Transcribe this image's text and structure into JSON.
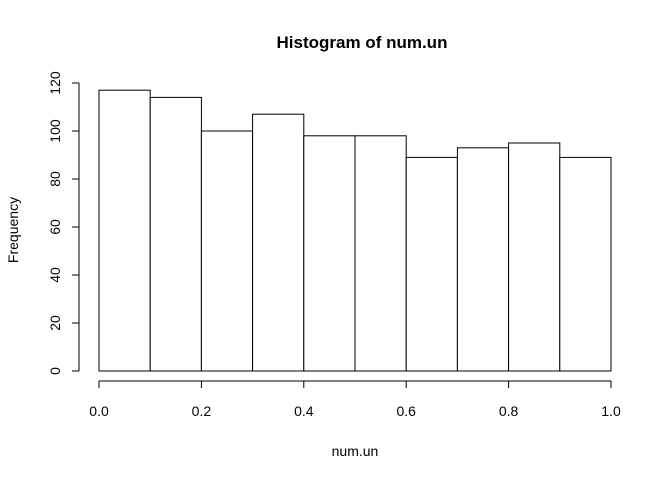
{
  "chart_data": {
    "type": "bar",
    "title": "Histogram of num.un",
    "xlabel": "num.un",
    "ylabel": "Frequency",
    "bins": [
      {
        "start": 0.0,
        "end": 0.1,
        "count": 117
      },
      {
        "start": 0.1,
        "end": 0.2,
        "count": 114
      },
      {
        "start": 0.2,
        "end": 0.3,
        "count": 100
      },
      {
        "start": 0.3,
        "end": 0.4,
        "count": 107
      },
      {
        "start": 0.4,
        "end": 0.5,
        "count": 98
      },
      {
        "start": 0.5,
        "end": 0.6,
        "count": 98
      },
      {
        "start": 0.6,
        "end": 0.7,
        "count": 89
      },
      {
        "start": 0.7,
        "end": 0.8,
        "count": 93
      },
      {
        "start": 0.8,
        "end": 0.9,
        "count": 95
      },
      {
        "start": 0.9,
        "end": 1.0,
        "count": 89
      }
    ],
    "xlim": [
      0,
      1
    ],
    "ylim": [
      0,
      120
    ],
    "xticks": [
      {
        "value": 0.0,
        "label": "0.0"
      },
      {
        "value": 0.2,
        "label": "0.2"
      },
      {
        "value": 0.4,
        "label": "0.4"
      },
      {
        "value": 0.6,
        "label": "0.6"
      },
      {
        "value": 0.8,
        "label": "0.8"
      },
      {
        "value": 1.0,
        "label": "1.0"
      }
    ],
    "yticks": [
      {
        "value": 0,
        "label": "0"
      },
      {
        "value": 20,
        "label": "20"
      },
      {
        "value": 40,
        "label": "40"
      },
      {
        "value": 60,
        "label": "60"
      },
      {
        "value": 80,
        "label": "80"
      },
      {
        "value": 100,
        "label": "100"
      },
      {
        "value": 120,
        "label": "120"
      }
    ],
    "grid": false,
    "bar_fill": "#ffffff",
    "bar_stroke": "#000000"
  }
}
